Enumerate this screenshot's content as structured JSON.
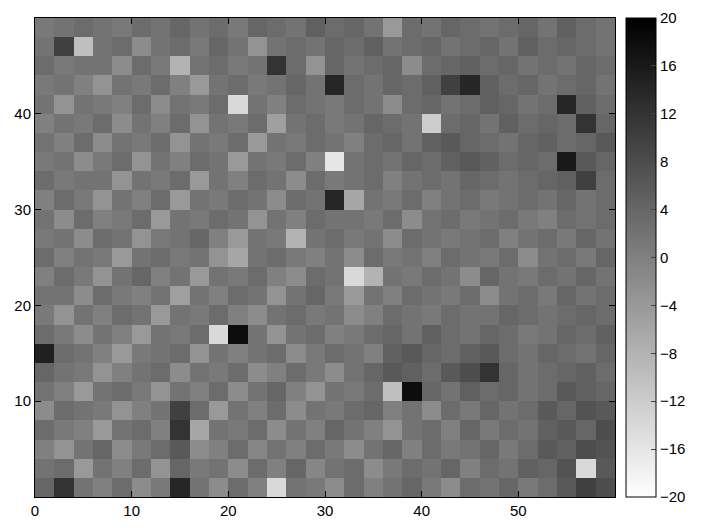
{
  "chart_data": {
    "type": "heatmap",
    "x": [
      1,
      3,
      5,
      7,
      9,
      11,
      13,
      15,
      17,
      19,
      21,
      23,
      25,
      27,
      29,
      31,
      33,
      35,
      37,
      39,
      41,
      43,
      45,
      47,
      49,
      51,
      53,
      55,
      57,
      59
    ],
    "y": [
      1,
      3,
      5,
      7,
      9,
      11,
      13,
      15,
      17,
      19,
      21,
      23,
      25,
      27,
      29,
      31,
      33,
      35,
      37,
      39,
      41,
      43,
      45,
      47,
      49
    ],
    "z": [
      [
        4,
        12,
        2,
        0,
        3,
        -2,
        1,
        14,
        2,
        -2,
        3,
        0,
        -14,
        2,
        1,
        -2,
        3,
        0,
        2,
        4,
        1,
        -2,
        3,
        2,
        4,
        1,
        3,
        6,
        10,
        8
      ],
      [
        2,
        3,
        -4,
        2,
        0,
        3,
        -3,
        4,
        1,
        2,
        -2,
        3,
        0,
        4,
        -1,
        2,
        3,
        -2,
        1,
        3,
        2,
        4,
        0,
        3,
        2,
        5,
        4,
        7,
        -14,
        6
      ],
      [
        0,
        -3,
        2,
        4,
        -2,
        1,
        3,
        6,
        -2,
        0,
        3,
        -1,
        2,
        0,
        3,
        1,
        -2,
        2,
        4,
        0,
        3,
        1,
        2,
        4,
        1,
        3,
        6,
        5,
        8,
        7
      ],
      [
        3,
        1,
        0,
        -4,
        2,
        3,
        0,
        12,
        -6,
        2,
        1,
        3,
        -2,
        2,
        0,
        4,
        2,
        0,
        -3,
        2,
        3,
        0,
        4,
        1,
        3,
        2,
        5,
        6,
        4,
        8
      ],
      [
        -2,
        3,
        2,
        1,
        -3,
        0,
        2,
        10,
        3,
        -4,
        2,
        0,
        3,
        -2,
        2,
        1,
        3,
        4,
        0,
        2,
        -2,
        3,
        1,
        4,
        2,
        3,
        6,
        4,
        7,
        6
      ],
      [
        2,
        0,
        -4,
        2,
        3,
        1,
        -3,
        2,
        0,
        3,
        -2,
        2,
        4,
        0,
        -3,
        2,
        1,
        3,
        -10,
        18,
        4,
        2,
        5,
        3,
        4,
        2,
        3,
        6,
        5,
        4
      ],
      [
        4,
        2,
        1,
        -3,
        0,
        2,
        3,
        -2,
        2,
        1,
        3,
        -2,
        0,
        3,
        1,
        -2,
        2,
        4,
        6,
        5,
        3,
        6,
        8,
        12,
        4,
        2,
        3,
        4,
        5,
        3
      ],
      [
        15,
        3,
        2,
        0,
        -4,
        1,
        2,
        3,
        -3,
        2,
        0,
        2,
        3,
        -2,
        1,
        3,
        2,
        0,
        5,
        6,
        4,
        3,
        5,
        6,
        3,
        2,
        4,
        3,
        2,
        4
      ],
      [
        3,
        1,
        -2,
        2,
        0,
        -4,
        2,
        1,
        3,
        -14,
        18,
        2,
        -3,
        2,
        3,
        0,
        1,
        3,
        4,
        2,
        5,
        3,
        2,
        4,
        3,
        1,
        2,
        4,
        3,
        5
      ],
      [
        1,
        -3,
        2,
        0,
        3,
        2,
        -4,
        2,
        1,
        3,
        0,
        -2,
        2,
        3,
        1,
        2,
        -2,
        0,
        3,
        2,
        1,
        3,
        2,
        2,
        4,
        3,
        2,
        3,
        4,
        3
      ],
      [
        2,
        2,
        -2,
        3,
        1,
        0,
        2,
        -5,
        2,
        0,
        3,
        2,
        -3,
        2,
        4,
        1,
        -4,
        2,
        0,
        3,
        2,
        1,
        3,
        -2,
        2,
        3,
        1,
        4,
        2,
        3
      ],
      [
        0,
        3,
        1,
        -3,
        2,
        4,
        0,
        2,
        -4,
        2,
        1,
        3,
        0,
        -2,
        3,
        2,
        -14,
        -8,
        2,
        1,
        3,
        2,
        -2,
        4,
        2,
        1,
        3,
        2,
        4,
        2
      ],
      [
        3,
        0,
        2,
        1,
        -4,
        2,
        3,
        1,
        2,
        -3,
        -6,
        2,
        3,
        1,
        0,
        2,
        -2,
        3,
        1,
        2,
        0,
        3,
        2,
        1,
        3,
        -2,
        2,
        3,
        1,
        4
      ],
      [
        1,
        2,
        -2,
        3,
        2,
        -3,
        1,
        2,
        4,
        0,
        -4,
        2,
        1,
        -8,
        2,
        3,
        1,
        2,
        -2,
        3,
        2,
        1,
        2,
        3,
        0,
        2,
        3,
        1,
        4,
        2
      ],
      [
        2,
        -2,
        3,
        0,
        1,
        3,
        -4,
        2,
        1,
        3,
        2,
        -3,
        2,
        0,
        3,
        2,
        2,
        1,
        3,
        -2,
        2,
        3,
        1,
        2,
        3,
        1,
        0,
        3,
        2,
        3
      ],
      [
        0,
        3,
        1,
        -3,
        2,
        0,
        3,
        -4,
        2,
        1,
        3,
        2,
        -2,
        3,
        2,
        14,
        -6,
        2,
        1,
        3,
        0,
        2,
        3,
        1,
        2,
        3,
        2,
        4,
        2,
        3
      ],
      [
        3,
        1,
        2,
        2,
        -3,
        2,
        1,
        3,
        -4,
        2,
        0,
        3,
        2,
        -2,
        3,
        1,
        2,
        3,
        0,
        2,
        3,
        2,
        4,
        3,
        2,
        3,
        4,
        5,
        10,
        3
      ],
      [
        1,
        2,
        -2,
        1,
        3,
        -3,
        2,
        0,
        3,
        2,
        -4,
        2,
        1,
        3,
        0,
        -16,
        2,
        3,
        2,
        4,
        3,
        5,
        6,
        5,
        3,
        4,
        3,
        16,
        6,
        4
      ],
      [
        2,
        0,
        3,
        -2,
        2,
        1,
        3,
        -3,
        2,
        1,
        3,
        -4,
        2,
        1,
        3,
        2,
        0,
        3,
        4,
        2,
        5,
        6,
        4,
        3,
        2,
        4,
        5,
        3,
        4,
        6
      ],
      [
        0,
        2,
        1,
        3,
        -2,
        2,
        0,
        3,
        -3,
        2,
        1,
        3,
        -5,
        2,
        3,
        1,
        2,
        4,
        3,
        2,
        -12,
        3,
        4,
        2,
        5,
        3,
        4,
        3,
        12,
        4
      ],
      [
        2,
        -3,
        2,
        1,
        0,
        3,
        -2,
        2,
        1,
        3,
        -14,
        2,
        0,
        3,
        2,
        1,
        3,
        2,
        -2,
        3,
        4,
        2,
        3,
        5,
        4,
        2,
        3,
        14,
        5,
        3
      ],
      [
        1,
        2,
        0,
        -3,
        2,
        1,
        3,
        0,
        -4,
        2,
        3,
        1,
        2,
        4,
        2,
        14,
        3,
        2,
        4,
        3,
        5,
        10,
        14,
        5,
        3,
        4,
        2,
        3,
        4,
        2
      ],
      [
        3,
        1,
        2,
        2,
        -2,
        3,
        1,
        -8,
        2,
        3,
        1,
        2,
        12,
        3,
        -3,
        4,
        2,
        3,
        4,
        -2,
        3,
        4,
        5,
        3,
        4,
        2,
        3,
        2,
        4,
        3
      ],
      [
        2,
        10,
        -10,
        2,
        3,
        -2,
        2,
        3,
        1,
        4,
        2,
        -3,
        2,
        3,
        2,
        4,
        3,
        5,
        2,
        3,
        4,
        2,
        3,
        4,
        2,
        5,
        3,
        4,
        3,
        2
      ],
      [
        1,
        2,
        3,
        2,
        1,
        3,
        2,
        4,
        2,
        3,
        1,
        4,
        3,
        2,
        5,
        3,
        4,
        2,
        -4,
        3,
        2,
        4,
        3,
        2,
        3,
        4,
        2,
        5,
        3,
        2
      ]
    ],
    "xlim": [
      0,
      60
    ],
    "ylim": [
      0,
      50
    ],
    "xticks": [
      0,
      10,
      20,
      30,
      40,
      50
    ],
    "yticks": [
      10,
      20,
      30,
      40
    ],
    "zlim": [
      -20,
      20
    ],
    "zticks": [
      -20,
      -16,
      -12,
      -8,
      -4,
      0,
      4,
      8,
      12,
      16,
      20
    ]
  }
}
